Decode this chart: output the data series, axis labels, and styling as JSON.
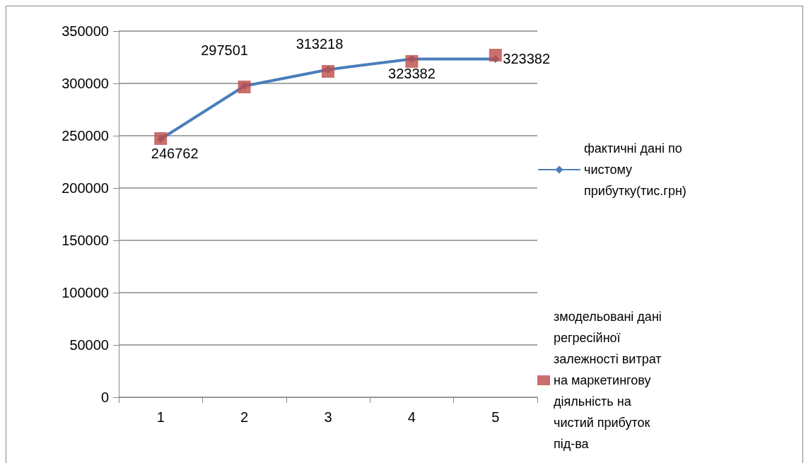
{
  "chart_data": {
    "type": "line",
    "categories": [
      "1",
      "2",
      "3",
      "4",
      "5"
    ],
    "series": [
      {
        "name": "фактичні дані по чистому прибутку(тис.грн)",
        "color": "#4a7ebb",
        "marker": "diamond",
        "values": [
          246762,
          297501,
          313218,
          323382,
          323382
        ],
        "value_labels": [
          "246762",
          "297501",
          "313218",
          "323382",
          "323382"
        ]
      },
      {
        "name": "змодельовані дані регресійної залежності витрат на маркетингову діяльність на чистий прибуток під-ва",
        "type": "scatter",
        "color": "#be4b48",
        "marker": "square",
        "values": [
          247300,
          296600,
          311500,
          321000,
          327000
        ]
      }
    ],
    "ylim": [
      0,
      350000
    ],
    "yticks": [
      0,
      50000,
      100000,
      150000,
      200000,
      250000,
      300000,
      350000
    ],
    "grid": "y",
    "legend": "right"
  }
}
